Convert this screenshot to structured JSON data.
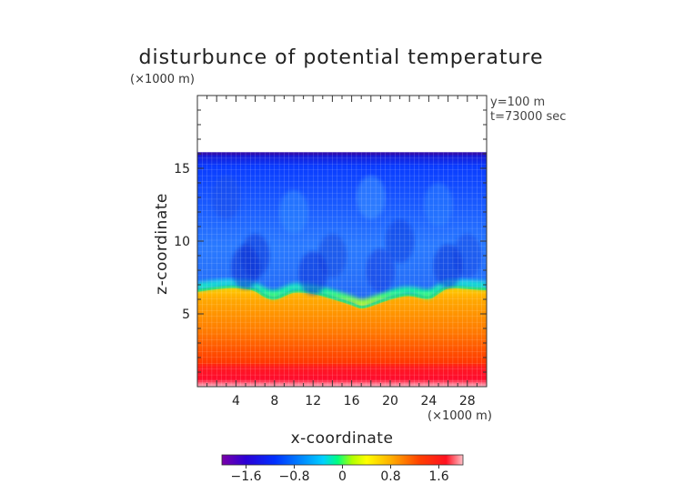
{
  "chart_data": {
    "type": "heatmap",
    "title": "disturbunce of potential temperature",
    "xlabel": "x-coordinate",
    "ylabel": "z-coordinate",
    "x_unit": "(×1000 m)",
    "y_unit": "(×1000 m)",
    "xlim": [
      0,
      30
    ],
    "ylim": [
      0,
      20
    ],
    "x_ticks": [
      4,
      8,
      12,
      16,
      20,
      24,
      28
    ],
    "y_ticks": [
      5,
      10,
      15
    ],
    "annotations": [
      "y=100 m",
      "t=73000 sec"
    ],
    "colorbar": {
      "ticks": [
        -1.6,
        -0.8,
        0,
        0.8,
        1.6
      ],
      "tick_labels": [
        "−1.6",
        "−0.8",
        "0",
        "0.8",
        "1.6"
      ],
      "range": [
        -2.0,
        2.0
      ]
    },
    "field": {
      "top_boundary_z": 16.1,
      "interface_profile": [
        [
          0,
          6.6
        ],
        [
          2,
          6.8
        ],
        [
          4,
          6.9
        ],
        [
          6,
          6.7
        ],
        [
          7,
          6.2
        ],
        [
          8,
          6.0
        ],
        [
          9,
          6.3
        ],
        [
          10,
          6.6
        ],
        [
          12,
          6.5
        ],
        [
          14,
          6.1
        ],
        [
          16,
          5.7
        ],
        [
          17,
          5.4
        ],
        [
          18,
          5.6
        ],
        [
          20,
          6.1
        ],
        [
          22,
          6.4
        ],
        [
          24,
          6.0
        ],
        [
          25,
          6.5
        ],
        [
          26,
          6.9
        ],
        [
          28,
          6.8
        ],
        [
          30,
          6.7
        ]
      ],
      "notes_values": {
        "upper_layer": -1.2,
        "top_edge": -1.9,
        "lower_layer_near_interface": 0.9,
        "surface": 1.9
      }
    }
  }
}
